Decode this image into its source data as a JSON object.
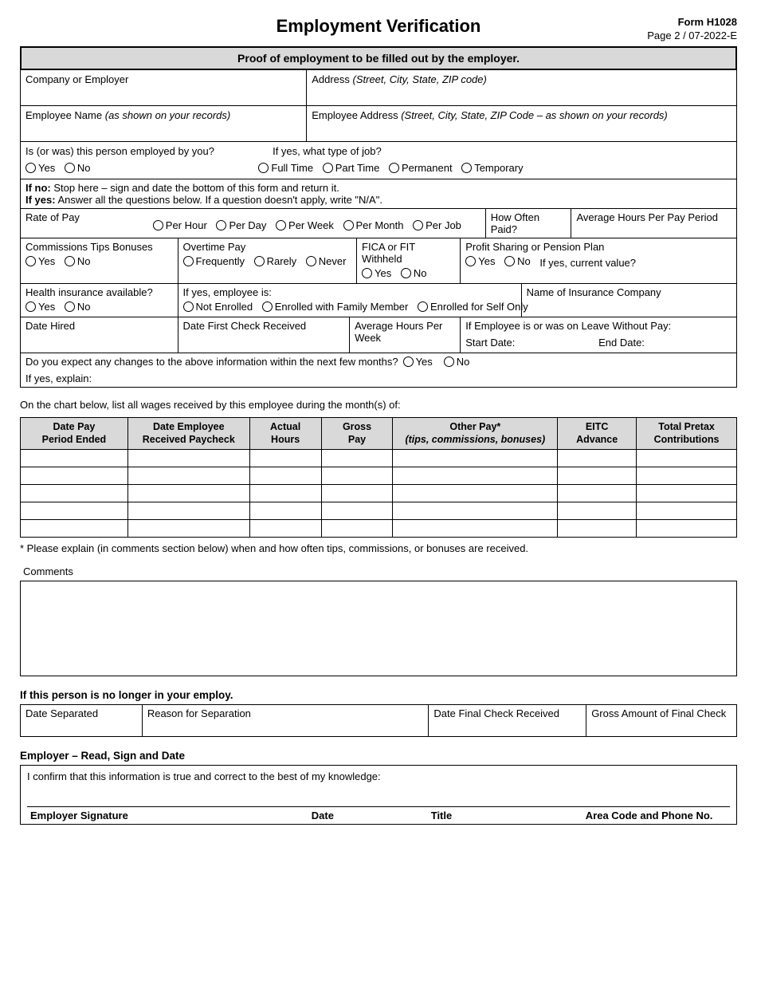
{
  "header": {
    "title": "Employment Verification",
    "form_no": "Form H1028",
    "page_info": "Page 2 / 07-2022-E"
  },
  "banner": "Proof of employment to be filled out by the employer.",
  "fields": {
    "company_label": "Company or Employer",
    "address_label": "Address",
    "address_hint": "(Street, City, State, ZIP code)",
    "emp_name_label": "Employee Name",
    "emp_name_hint": "(as shown on your records)",
    "emp_addr_label": "Employee Address",
    "emp_addr_hint": "(Street, City, State, ZIP Code – as shown on your records)",
    "employed_q": "Is (or was) this person employed by you?",
    "job_type_q": "If yes, what type of job?",
    "yes": "Yes",
    "no": "No",
    "full_time": "Full Time",
    "part_time": "Part Time",
    "permanent": "Permanent",
    "temporary": "Temporary",
    "if_no_text": "If no:",
    "if_no_rest": " Stop here – sign and date the bottom of this form and return it.",
    "if_yes_text": "If yes:",
    "if_yes_rest": " Answer all the questions below. If a question doesn't apply, write \"N/A\".",
    "rate_label": "Rate of Pay",
    "per_hour": "Per Hour",
    "per_day": "Per Day",
    "per_week": "Per Week",
    "per_month": "Per Month",
    "per_job": "Per Job",
    "how_often": "How Often Paid?",
    "avg_hours_period": "Average Hours Per Pay Period",
    "comm_label": "Commissions Tips Bonuses",
    "overtime_label": "Overtime Pay",
    "frequently": "Frequently",
    "rarely": "Rarely",
    "never": "Never",
    "fica_label": "FICA or FIT Withheld",
    "profit_label": "Profit Sharing or Pension Plan",
    "current_value": "If yes, current value?",
    "health_label": "Health insurance available?",
    "if_yes_emp": "If yes, employee is:",
    "not_enrolled": "Not Enrolled",
    "enrolled_family": "Enrolled with Family Member",
    "enrolled_self": "Enrolled for Self Only",
    "ins_name": "Name of Insurance Company",
    "date_hired": "Date Hired",
    "first_check": "Date First Check Received",
    "avg_hours_week": "Average Hours Per Week",
    "leave_label": "If Employee is or was on Leave Without Pay:",
    "start_date": "Start Date:",
    "end_date": "End Date:",
    "changes_q": "Do you expect any changes to the above information within the next few months?",
    "explain": "If yes, explain:"
  },
  "wages_intro": "On the chart below, list all wages received by this employee during the month(s) of:",
  "wage_headers": [
    "Date Pay<br>Period Ended",
    "Date Employee<br>Received Paycheck",
    "Actual<br>Hours",
    "Gross<br>Pay",
    "Other Pay*<br><span class='italic'>(tips, commissions, bonuses)</span>",
    "EITC<br>Advance",
    "Total Pretax<br>Contributions"
  ],
  "wage_col_widths": [
    "15%",
    "17%",
    "10%",
    "10%",
    "23%",
    "11%",
    "14%"
  ],
  "wage_rows": 5,
  "wage_note": "* Please explain (in comments section below) when and how often tips, commissions, or bonuses are received.",
  "comments_label": "Comments",
  "sep": {
    "heading": "If this person is no longer in your employ.",
    "date_sep": "Date Separated",
    "reason": "Reason for Separation",
    "final_check": "Date Final Check Received",
    "gross_final": "Gross Amount of Final Check"
  },
  "sig": {
    "heading": "Employer – Read, Sign and Date",
    "confirm": "I confirm that this information is true and correct to the best of my knowledge:",
    "signature": "Employer Signature",
    "date": "Date",
    "title": "Title",
    "phone": "Area Code and Phone No."
  }
}
